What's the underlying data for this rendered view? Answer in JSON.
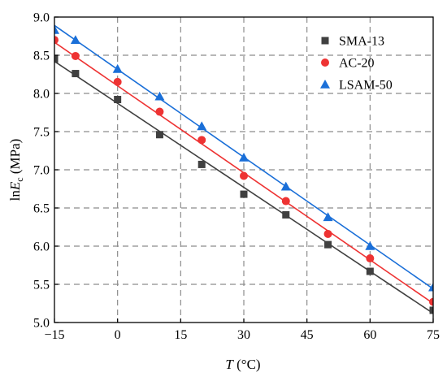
{
  "chart_data": {
    "type": "scatter",
    "x_label": {
      "italic": "T",
      "rest": " (°C)"
    },
    "y_label": {
      "prefix": "ln",
      "italic": "E",
      "subscript": "c",
      "rest": " (MPa)"
    },
    "xlim": [
      -15,
      75
    ],
    "ylim": [
      5.0,
      9.0
    ],
    "x_ticks": [
      -15,
      0,
      15,
      30,
      45,
      60,
      75
    ],
    "x_tick_labels": [
      "−15",
      "0",
      "15",
      "30",
      "45",
      "60",
      "75"
    ],
    "y_ticks": [
      5.0,
      5.5,
      6.0,
      6.5,
      7.0,
      7.5,
      8.0,
      8.5,
      9.0
    ],
    "y_tick_labels": [
      "5.0",
      "5.5",
      "6.0",
      "6.5",
      "7.0",
      "7.5",
      "8.0",
      "8.5",
      "9.0"
    ],
    "grid": "dashed",
    "legend_position": "top-right",
    "x": [
      -15,
      -10,
      0,
      10,
      20,
      30,
      40,
      50,
      60,
      75
    ],
    "series": [
      {
        "name": "SMA-13",
        "marker": "square",
        "color": "#404040",
        "values": [
          8.45,
          8.26,
          7.92,
          7.46,
          7.07,
          6.68,
          6.41,
          6.02,
          5.67,
          5.16
        ],
        "fit": {
          "x": [
            -15,
            75
          ],
          "y": [
            8.42,
            5.12
          ]
        }
      },
      {
        "name": "AC-20",
        "marker": "circle",
        "color": "#ee3333",
        "values": [
          8.7,
          8.49,
          8.15,
          7.76,
          7.39,
          6.92,
          6.59,
          6.16,
          5.84,
          5.27
        ],
        "fit": {
          "x": [
            -15,
            75
          ],
          "y": [
            8.67,
            5.25
          ]
        }
      },
      {
        "name": "LSAM-50",
        "marker": "triangle",
        "color": "#1a6fd8",
        "values": [
          8.83,
          8.7,
          8.32,
          7.96,
          7.57,
          7.16,
          6.78,
          6.38,
          6.0,
          5.46
        ],
        "fit": {
          "x": [
            -15,
            75
          ],
          "y": [
            8.89,
            5.44
          ]
        }
      }
    ]
  }
}
